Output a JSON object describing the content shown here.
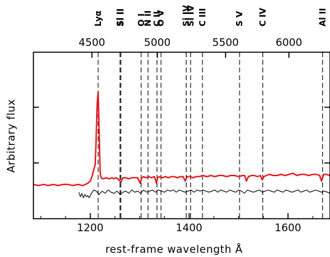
{
  "chart_data": {
    "type": "line",
    "title": "",
    "xlabel": "rest-frame wavelength Å",
    "ylabel": "Arbitrary flux",
    "xlim": [
      1085,
      1685
    ],
    "ylim": [
      0,
      1
    ],
    "x_ticks": [
      1200,
      1400,
      1600
    ],
    "top_axis": {
      "labels": [
        "4500",
        "5000",
        "5500",
        "6000"
      ],
      "values": [
        4500,
        5000,
        5500,
        6000
      ]
    },
    "grid": false,
    "legend": "none",
    "emission_lines": [
      {
        "label": "Lyα",
        "x": 1216
      },
      {
        "label": "Si II",
        "x": 1260
      },
      {
        "label": "Si II",
        "x": 1262
      },
      {
        "label": "O I",
        "x": 1303
      },
      {
        "label": "N II",
        "x": 1317
      },
      {
        "label": "C II",
        "x": 1335
      },
      {
        "label": "O V",
        "x": 1343
      },
      {
        "label": "Si IV",
        "x": 1394
      },
      {
        "label": "Si IV",
        "x": 1403
      },
      {
        "label": "C III",
        "x": 1427
      },
      {
        "label": "S V",
        "x": 1502
      },
      {
        "label": "C IV",
        "x": 1549
      },
      {
        "label": "Al II",
        "x": 1670
      }
    ],
    "series": [
      {
        "color": "#e8141b",
        "x": [
          1085,
          1095,
          1105,
          1115,
          1125,
          1135,
          1145,
          1155,
          1165,
          1175,
          1185,
          1195,
          1200,
          1204,
          1207,
          1210,
          1212,
          1214,
          1216,
          1218,
          1220,
          1222,
          1226,
          1232,
          1238,
          1244,
          1248,
          1252,
          1256,
          1262,
          1266,
          1272,
          1278,
          1284,
          1290,
          1296,
          1301,
          1304,
          1308,
          1312,
          1318,
          1324,
          1330,
          1334,
          1336,
          1340,
          1346,
          1352,
          1358,
          1364,
          1370,
          1376,
          1382,
          1388,
          1392,
          1396,
          1402,
          1408,
          1414,
          1420,
          1428,
          1436,
          1444,
          1452,
          1460,
          1468,
          1476,
          1484,
          1492,
          1500,
          1508,
          1512,
          1516,
          1520,
          1526,
          1532,
          1538,
          1544,
          1548,
          1551,
          1556,
          1562,
          1570,
          1578,
          1586,
          1594,
          1602,
          1610,
          1618,
          1626,
          1634,
          1642,
          1650,
          1658,
          1664,
          1668,
          1672,
          1678,
          1685
        ],
        "y": [
          0.12,
          0.11,
          0.12,
          0.11,
          0.12,
          0.11,
          0.12,
          0.12,
          0.11,
          0.12,
          0.11,
          0.13,
          0.15,
          0.2,
          0.25,
          0.3,
          0.55,
          0.85,
          0.95,
          0.6,
          0.22,
          0.18,
          0.17,
          0.18,
          0.17,
          0.18,
          0.17,
          0.18,
          0.17,
          0.14,
          0.18,
          0.18,
          0.17,
          0.18,
          0.18,
          0.18,
          0.13,
          0.18,
          0.19,
          0.18,
          0.19,
          0.18,
          0.19,
          0.13,
          0.18,
          0.19,
          0.18,
          0.19,
          0.18,
          0.19,
          0.19,
          0.18,
          0.19,
          0.19,
          0.15,
          0.19,
          0.19,
          0.18,
          0.19,
          0.19,
          0.2,
          0.19,
          0.2,
          0.19,
          0.2,
          0.2,
          0.19,
          0.2,
          0.2,
          0.19,
          0.2,
          0.2,
          0.15,
          0.19,
          0.2,
          0.2,
          0.19,
          0.2,
          0.16,
          0.19,
          0.2,
          0.21,
          0.2,
          0.2,
          0.21,
          0.2,
          0.21,
          0.22,
          0.2,
          0.21,
          0.21,
          0.2,
          0.21,
          0.21,
          0.2,
          0.15,
          0.21,
          0.21,
          0.2
        ]
      },
      {
        "color": "#000000",
        "x": [
          1177,
          1180,
          1183,
          1186,
          1189,
          1192,
          1195,
          1198,
          1201,
          1204,
          1207,
          1212,
          1218,
          1224,
          1230,
          1236,
          1242,
          1248,
          1254,
          1260,
          1266,
          1272,
          1278,
          1284,
          1290,
          1296,
          1302,
          1308,
          1314,
          1320,
          1326,
          1332,
          1338,
          1344,
          1350,
          1356,
          1362,
          1368,
          1374,
          1380,
          1386,
          1392,
          1398,
          1404,
          1410,
          1416,
          1422,
          1428,
          1434,
          1440,
          1446,
          1452,
          1458,
          1464,
          1470,
          1476,
          1482,
          1488,
          1494,
          1500,
          1506,
          1512,
          1518,
          1524,
          1530,
          1536,
          1542,
          1548,
          1554,
          1560,
          1566,
          1572,
          1578,
          1584,
          1590,
          1596,
          1602,
          1608,
          1614,
          1620,
          1626,
          1632,
          1638,
          1644,
          1650,
          1656,
          1662,
          1668,
          1674,
          1680,
          1685
        ],
        "y": [
          0.05,
          0.01,
          0.04,
          0.0,
          0.03,
          0.01,
          0.02,
          0.0,
          0.03,
          0.05,
          0.07,
          0.06,
          0.03,
          0.06,
          0.04,
          0.07,
          0.05,
          0.04,
          0.06,
          0.03,
          0.05,
          0.06,
          0.04,
          0.07,
          0.05,
          0.06,
          0.04,
          0.07,
          0.05,
          0.06,
          0.07,
          0.05,
          0.07,
          0.06,
          0.05,
          0.07,
          0.06,
          0.07,
          0.05,
          0.07,
          0.06,
          0.05,
          0.06,
          0.07,
          0.05,
          0.07,
          0.06,
          0.07,
          0.06,
          0.05,
          0.06,
          0.07,
          0.05,
          0.07,
          0.06,
          0.05,
          0.07,
          0.06,
          0.05,
          0.07,
          0.06,
          0.04,
          0.07,
          0.06,
          0.05,
          0.06,
          0.07,
          0.05,
          0.06,
          0.07,
          0.06,
          0.05,
          0.07,
          0.06,
          0.05,
          0.07,
          0.06,
          0.05,
          0.06,
          0.07,
          0.05,
          0.06,
          0.07,
          0.05,
          0.06,
          0.07,
          0.06,
          0.05,
          0.06,
          0.05,
          0.04
        ]
      }
    ]
  }
}
